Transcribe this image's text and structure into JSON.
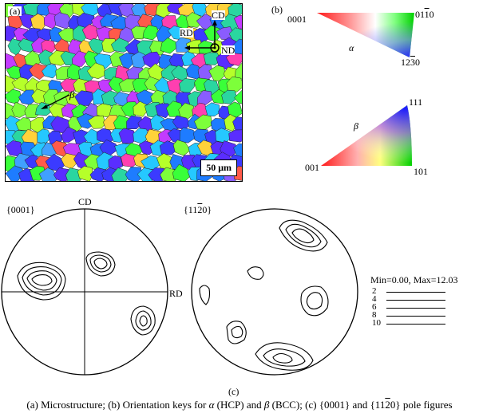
{
  "panel_a": {
    "label": "(a)",
    "axes": {
      "cd": "CD",
      "rd": "RD",
      "nd": "ND"
    },
    "beta": "β",
    "scale": "50 μm"
  },
  "panel_b": {
    "label": "(b)",
    "alpha_key": {
      "symbol": "α",
      "c1": "0001",
      "c2_pre": "01",
      "c2_bar": "1",
      "c2_post": "0",
      "c3_pre": "12",
      "c3_bar": "3",
      "c3_post": "0"
    },
    "beta_key": {
      "symbol": "β",
      "c1": "001",
      "c2": "101",
      "c3": "111"
    }
  },
  "panel_c": {
    "label": "(c)",
    "pf1": {
      "title": "{0001}",
      "top": "CD",
      "right": "RD"
    },
    "pf2": {
      "title_pre": "{11",
      "title_bar": "2",
      "title_post": "0}"
    },
    "legend": {
      "range": "Min=0.00, Max=12.03",
      "levels": [
        "2",
        "4",
        "6",
        "8",
        "10"
      ]
    }
  },
  "caption": {
    "part1": "(a) Microstructure; (b) Orientation keys for ",
    "a": "α",
    "part2": " (HCP) and ",
    "b": "β",
    "part3": " (BCC); (c) {0001} and  {11",
    "bar": "2",
    "part4": "0} pole figures"
  }
}
